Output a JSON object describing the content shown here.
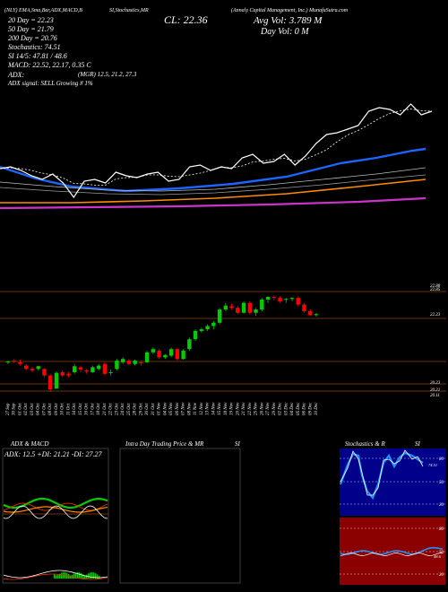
{
  "header": {
    "ticker_line": "(NLY) EMA,Sma,Bar,ADX,MACD,B",
    "charts_line": "SI,Stochastics,MR",
    "company_line": "(Annaly Capital Management, Inc.) MunafaSutra.com",
    "close_label": "CL: 22.36",
    "volume_label": "Avg Vol: 3.789 M",
    "day_vol_label": "Day Vol: 0  M",
    "ma20": "20 Day = 22.23",
    "ma50": "50 Day = 21.79",
    "ma200": "200 Day = 20.76",
    "stochastics": "Stochastics: 74.51",
    "si": "SI 14/5: 47.81 / 48.6",
    "macd": "MACD: 22.52, 22.17, 0.35 C",
    "adx": "ADX:",
    "adx_values": "(MGR) 12.5, 21.2, 27.3",
    "adx_signal": "ADX  signal: SELL Growing # 1%"
  },
  "colors": {
    "price": "#ffffff",
    "ema_fast": "#1e64ff",
    "ema_mid": "#ff8c00",
    "ema_slow": "#cc33cc",
    "up_candle": "#00cc00",
    "down_candle": "#ff0000",
    "grid": "#8b4513"
  },
  "chart_data": [
    {
      "type": "line",
      "title": "",
      "series": [
        {
          "values": [
            20.9,
            20.95,
            20.85,
            20.7,
            20.6,
            20.75,
            20.5,
            20.1,
            20.55,
            20.6,
            20.5,
            20.8,
            20.7,
            20.65,
            20.75,
            20.8,
            20.55,
            20.6,
            20.95,
            21.0,
            20.85,
            20.95,
            20.9,
            21.2,
            21.3,
            21.05,
            21.1,
            21.3,
            21.0,
            21.25,
            21.6,
            21.85,
            21.9,
            22.0,
            22.1,
            22.5,
            22.6,
            22.55,
            22.4,
            22.7,
            22.4,
            22.5
          ]
        }
      ]
    },
    {
      "type": "candlestick",
      "title": "",
      "x": [
        "27 Sep",
        "30 Sep",
        "01 Oct",
        "02 Oct",
        "03 Oct",
        "04 Oct",
        "07 Oct",
        "08 Oct",
        "09 Oct",
        "10 Oct",
        "11 Oct",
        "14 Oct",
        "15 Oct",
        "16 Oct",
        "17 Oct",
        "18 Oct",
        "21 Oct",
        "22 Oct",
        "23 Oct",
        "24 Oct",
        "25 Oct",
        "28 Oct",
        "29 Oct",
        "30 Oct",
        "31 Oct",
        "01 Nov",
        "04 Nov",
        "05 Nov",
        "06 Nov",
        "07 Nov",
        "08 Nov",
        "11 Nov",
        "12 Nov",
        "13 Nov",
        "14 Nov",
        "15 Nov",
        "18 Nov",
        "19 Nov",
        "20 Nov",
        "21 Nov",
        "22 Nov",
        "25 Nov",
        "26 Nov",
        "27 Nov",
        "29 Nov",
        "02 Dec",
        "03 Dec",
        "04 Dec",
        "05 Dec",
        "06 Dec",
        "09 Dec",
        "10 Dec"
      ],
      "ohlc": [
        [
          20.9,
          20.95,
          20.85,
          20.92
        ],
        [
          20.95,
          21.0,
          20.88,
          20.93
        ],
        [
          20.9,
          20.98,
          20.8,
          20.85
        ],
        [
          20.8,
          20.85,
          20.65,
          20.7
        ],
        [
          20.7,
          20.75,
          20.6,
          20.65
        ],
        [
          20.7,
          20.8,
          20.65,
          20.78
        ],
        [
          20.7,
          20.72,
          20.45,
          20.5
        ],
        [
          20.5,
          20.55,
          20.0,
          20.08
        ],
        [
          20.1,
          20.62,
          20.1,
          20.58
        ],
        [
          20.6,
          20.65,
          20.45,
          20.5
        ],
        [
          20.55,
          20.6,
          20.45,
          20.5
        ],
        [
          20.6,
          20.85,
          20.55,
          20.78
        ],
        [
          20.75,
          20.8,
          20.6,
          20.68
        ],
        [
          20.65,
          20.7,
          20.55,
          20.62
        ],
        [
          20.6,
          20.8,
          20.58,
          20.75
        ],
        [
          20.7,
          20.85,
          20.65,
          20.8
        ],
        [
          20.85,
          20.9,
          20.5,
          20.55
        ],
        [
          20.6,
          20.68,
          20.5,
          20.6
        ],
        [
          20.7,
          21.0,
          20.65,
          20.95
        ],
        [
          20.9,
          21.05,
          20.85,
          21.0
        ],
        [
          20.95,
          21.0,
          20.8,
          20.85
        ],
        [
          20.85,
          20.98,
          20.8,
          20.95
        ],
        [
          20.9,
          20.95,
          20.8,
          20.88
        ],
        [
          20.9,
          21.25,
          20.88,
          21.2
        ],
        [
          21.2,
          21.35,
          21.15,
          21.3
        ],
        [
          21.25,
          21.3,
          21.0,
          21.05
        ],
        [
          21.05,
          21.15,
          21.0,
          21.12
        ],
        [
          21.1,
          21.35,
          21.05,
          21.3
        ],
        [
          21.3,
          21.32,
          20.95,
          21.0
        ],
        [
          21.0,
          21.3,
          20.98,
          21.25
        ],
        [
          21.3,
          21.65,
          21.25,
          21.6
        ],
        [
          21.6,
          21.9,
          21.55,
          21.85
        ],
        [
          21.85,
          21.95,
          21.8,
          21.9
        ],
        [
          21.9,
          22.05,
          21.85,
          22.0
        ],
        [
          22.0,
          22.15,
          21.9,
          22.1
        ],
        [
          22.1,
          22.55,
          22.05,
          22.5
        ],
        [
          22.5,
          22.7,
          22.45,
          22.62
        ],
        [
          22.6,
          22.68,
          22.5,
          22.55
        ],
        [
          22.55,
          22.6,
          22.35,
          22.4
        ],
        [
          22.4,
          22.75,
          22.38,
          22.7
        ],
        [
          22.7,
          22.75,
          22.35,
          22.4
        ],
        [
          22.4,
          22.55,
          22.3,
          22.5
        ],
        [
          22.5,
          22.85,
          22.45,
          22.8
        ],
        [
          22.8,
          22.9,
          22.7,
          22.88
        ],
        [
          22.88,
          22.92,
          22.78,
          22.85
        ],
        [
          22.85,
          22.9,
          22.7,
          22.75
        ],
        [
          22.8,
          22.85,
          22.7,
          22.82
        ],
        [
          22.82,
          22.88,
          22.75,
          22.85
        ],
        [
          22.85,
          22.9,
          22.6,
          22.65
        ],
        [
          22.65,
          22.7,
          22.4,
          22.45
        ],
        [
          22.45,
          22.5,
          22.3,
          22.33
        ],
        [
          22.33,
          22.4,
          22.28,
          22.36
        ]
      ],
      "price_labels": [
        "22.88",
        "22.85",
        "22.23",
        "20.23",
        "20.21",
        "20.11"
      ],
      "ylim": [
        20.0,
        23.1
      ]
    }
  ],
  "panels": {
    "adx_title": "ADX  & MACD",
    "adx_values": "ADX: 12.5  +DI: 21.21  -DI: 27.27",
    "intra_title": "Intra  Day Trading Price  & MR",
    "intra_si": "SI",
    "stoch_title": "Stochastics & R",
    "stoch_si": "SI",
    "stoch_ticks": [
      "80",
      "50",
      "20"
    ],
    "stoch_value": "74.51",
    "si_ticks": [
      "80",
      "50",
      "20"
    ],
    "si_value": "48.6"
  }
}
